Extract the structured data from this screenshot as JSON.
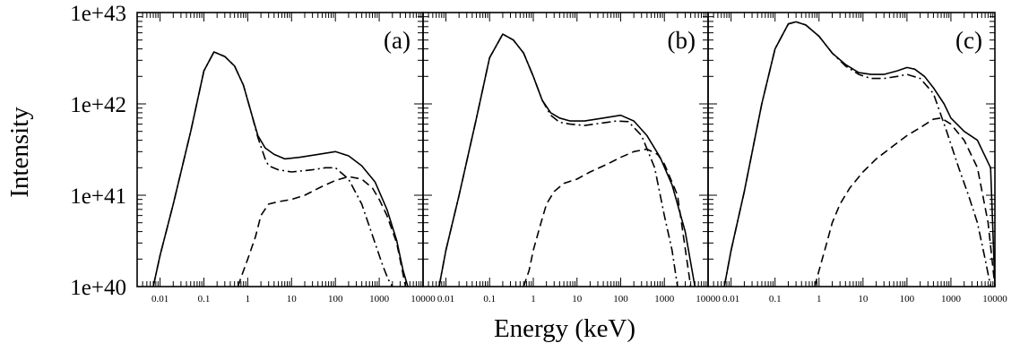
{
  "chart_data": {
    "type": "line",
    "xlabel": "Energy (keV)",
    "ylabel": "Intensity",
    "x_scale": "log",
    "y_scale": "log",
    "xlim": [
      0.003,
      10000
    ],
    "ylim": [
      1e+40,
      1e+43
    ],
    "ytick_labels": [
      "1e+40",
      "1e+41",
      "1e+42",
      "1e+43"
    ],
    "ytick_values": [
      1e+40,
      1e+41,
      1e+42,
      1e+43
    ],
    "xtick_values": [
      0.01,
      0.1,
      1,
      10,
      100,
      1000,
      10000
    ],
    "xtick_labels_panel_a": [
      "0.01",
      "0.1",
      "1",
      "10",
      "100",
      "1000",
      "10000"
    ],
    "xtick_labels_panel_b": [
      "0.01",
      "0.1",
      "1",
      "10",
      "100",
      "1000",
      "10000"
    ],
    "xtick_labels_panel_c": [
      "0.01",
      "0.1",
      "1",
      "10",
      "100",
      "1000",
      "10000"
    ],
    "grid": false,
    "legend": "none",
    "panels": [
      {
        "label": "(a)",
        "series": [
          {
            "style": "solid",
            "x": [
              0.007,
              0.01,
              0.02,
              0.05,
              0.1,
              0.17,
              0.3,
              0.5,
              0.8,
              1.2,
              1.7,
              2.5,
              4,
              7,
              15,
              40,
              100,
              200,
              400,
              800,
              1500,
              2500,
              3500,
              4500
            ],
            "y": [
              1e+40,
              2.2e+40,
              8e+40,
              5e+41,
              2.3e+42,
              3.7e+42,
              3.3e+42,
              2.6e+42,
              1.6e+42,
              8e+41,
              4.5e+41,
              3.3e+41,
              2.8e+41,
              2.5e+41,
              2.6e+41,
              2.8e+41,
              3e+41,
              2.7e+41,
              2.1e+41,
              1.4e+41,
              7e+40,
              3.2e+40,
              1.5e+40,
              1e+40
            ]
          },
          {
            "style": "dashdot",
            "x": [
              0.007,
              0.01,
              0.02,
              0.05,
              0.1,
              0.17,
              0.3,
              0.5,
              0.8,
              1.2,
              1.7,
              2.5,
              3,
              5,
              10,
              30,
              60,
              100,
              200,
              400,
              800,
              1200,
              1600,
              2000
            ],
            "y": [
              1e+40,
              2.2e+40,
              8e+40,
              5e+41,
              2.3e+42,
              3.7e+42,
              3.3e+42,
              2.6e+42,
              1.6e+42,
              8e+41,
              4.3e+41,
              2.5e+41,
              2.1e+41,
              1.9e+41,
              1.8e+41,
              1.9e+41,
              2e+41,
              2e+41,
              1.5e+41,
              8e+40,
              3e+40,
              1.7e+40,
              1.2e+40,
              1e+40
            ]
          },
          {
            "style": "dashed",
            "x": [
              0.6,
              0.7,
              1,
              1.5,
              2,
              3,
              5,
              10,
              20,
              50,
              100,
              200,
              400,
              700,
              1000,
              1500,
              2500,
              4000
            ],
            "y": [
              1e+40,
              1.25e+40,
              2e+40,
              3.5e+40,
              6e+40,
              8e+40,
              8.5e+40,
              9e+40,
              1e+41,
              1.25e+41,
              1.45e+41,
              1.6e+41,
              1.5e+41,
              1.2e+41,
              9e+40,
              6e+40,
              3e+40,
              1e+40
            ]
          }
        ]
      },
      {
        "label": "(b)",
        "series": [
          {
            "style": "solid",
            "x": [
              0.007,
              0.01,
              0.02,
              0.05,
              0.1,
              0.2,
              0.35,
              0.6,
              1,
              1.6,
              2.5,
              4,
              7,
              15,
              40,
              100,
              200,
              400,
              800,
              1500,
              3000,
              5000
            ],
            "y": [
              1e+40,
              2.5e+40,
              1e+41,
              7e+41,
              3.2e+42,
              5.8e+42,
              5e+42,
              3.6e+42,
              2e+42,
              1.1e+42,
              8e+41,
              7e+41,
              6.5e+41,
              6.5e+41,
              7e+41,
              7.5e+41,
              6.5e+41,
              4.5e+41,
              2.6e+41,
              1.3e+41,
              4e+40,
              1e+40
            ]
          },
          {
            "style": "dashdot",
            "x": [
              0.007,
              0.01,
              0.02,
              0.05,
              0.1,
              0.2,
              0.35,
              0.6,
              1,
              1.6,
              2.5,
              4,
              7,
              15,
              40,
              80,
              150,
              300,
              600,
              1000,
              1500,
              2000
            ],
            "y": [
              1e+40,
              2.5e+40,
              1e+41,
              7e+41,
              3.2e+42,
              5.8e+42,
              5e+42,
              3.6e+42,
              2e+42,
              1.1e+42,
              7.5e+41,
              6.3e+41,
              6e+41,
              5.8e+41,
              6.2e+41,
              6.5e+41,
              6.4e+41,
              4.5e+41,
              2e+41,
              6e+40,
              2.5e+40,
              1e+40
            ]
          },
          {
            "style": "dashed",
            "x": [
              0.6,
              0.8,
              1,
              1.5,
              2,
              3,
              5,
              10,
              20,
              50,
              100,
              200,
              400,
              700,
              1000,
              2000,
              4000
            ],
            "y": [
              1e+40,
              1.5e+40,
              2.5e+40,
              5e+40,
              8e+40,
              1.1e+41,
              1.35e+41,
              1.5e+41,
              1.8e+41,
              2.2e+41,
              2.6e+41,
              3e+41,
              3.2e+41,
              2.8e+41,
              2.2e+41,
              1e+41,
              1e+40
            ]
          }
        ]
      },
      {
        "label": "(c)",
        "series": [
          {
            "style": "solid",
            "x": [
              0.007,
              0.01,
              0.02,
              0.05,
              0.1,
              0.2,
              0.3,
              0.5,
              1,
              2,
              4,
              8,
              15,
              30,
              60,
              100,
              150,
              250,
              400,
              700,
              1000,
              2000,
              4000,
              8000,
              10000
            ],
            "y": [
              1e+40,
              2.5e+40,
              1.1e+41,
              1e+42,
              4e+42,
              7.5e+42,
              7.9e+42,
              7.3e+42,
              5.5e+42,
              3.6e+42,
              2.7e+42,
              2.2e+42,
              2.1e+42,
              2.1e+42,
              2.3e+42,
              2.5e+42,
              2.4e+42,
              2e+42,
              1.5e+42,
              1e+42,
              7e+41,
              5e+41,
              4e+41,
              2e+41,
              1e+40
            ]
          },
          {
            "style": "dashdot",
            "x": [
              0.007,
              0.01,
              0.02,
              0.05,
              0.1,
              0.2,
              0.3,
              0.5,
              1,
              2,
              4,
              8,
              15,
              30,
              60,
              100,
              200,
              400,
              800,
              1500,
              2500,
              4000,
              6000,
              8000
            ],
            "y": [
              1e+40,
              2.5e+40,
              1.1e+41,
              1e+42,
              4e+42,
              7.5e+42,
              7.9e+42,
              7.3e+42,
              5.5e+42,
              3.6e+42,
              2.6e+42,
              2.1e+42,
              1.9e+42,
              1.9e+42,
              2e+42,
              2.1e+42,
              1.9e+42,
              1.3e+42,
              5e+41,
              2e+41,
              1e+41,
              5e+40,
              2e+40,
              1e+40
            ]
          },
          {
            "style": "dashed",
            "x": [
              0.8,
              1,
              1.5,
              2,
              3,
              5,
              10,
              20,
              50,
              100,
              200,
              400,
              600,
              1000,
              2000,
              4000,
              7000,
              10000
            ],
            "y": [
              1e+40,
              1.5e+40,
              3e+40,
              5e+40,
              8e+40,
              1.2e+41,
              1.8e+41,
              2.5e+41,
              3.5e+41,
              4.5e+41,
              5.5e+41,
              6.8e+41,
              7e+41,
              6e+41,
              4e+41,
              2e+41,
              5e+40,
              1e+40
            ]
          }
        ]
      }
    ]
  }
}
